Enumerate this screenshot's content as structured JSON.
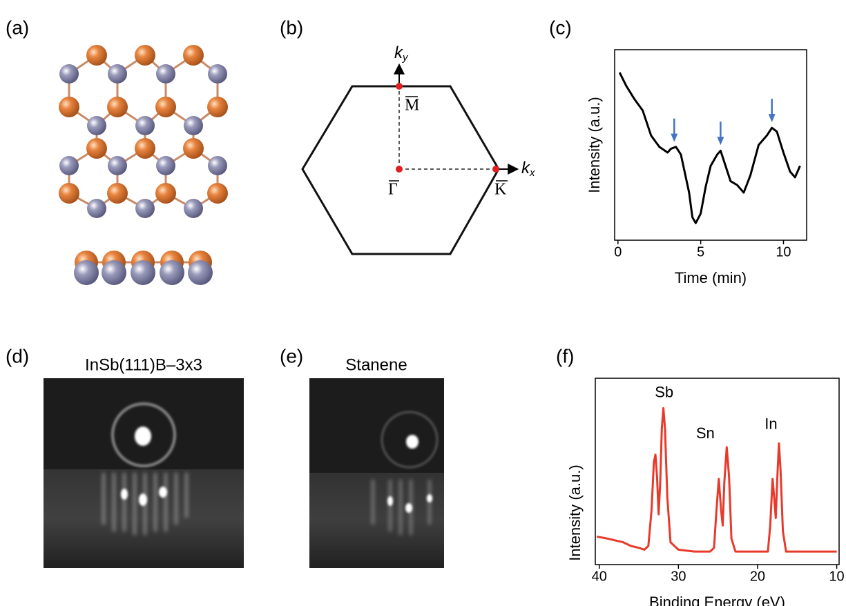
{
  "labels": [
    "(a)",
    "(b)",
    "(c)",
    "(d)",
    "(e)",
    "(f)"
  ],
  "brillouin_zone": {
    "ky": {
      "base": "k",
      "sub": "y"
    },
    "kx": {
      "base": "k",
      "sub": "x"
    },
    "points": [
      "M",
      "Γ",
      "K"
    ]
  },
  "images": [
    {
      "title": "InSb(111)B–3x3"
    },
    {
      "title": "Stanene"
    }
  ],
  "chart_data": [
    {
      "type": "line",
      "x_label": "Time (min)",
      "y_label": "Intensity (a.u.)",
      "x": [
        0.1,
        0.5,
        1.0,
        1.5,
        2.0,
        2.5,
        3.0,
        3.2,
        3.5,
        3.8,
        4.0,
        4.3,
        4.5,
        4.7,
        5.0,
        5.3,
        5.6,
        6.0,
        6.2,
        6.5,
        6.8,
        7.2,
        7.6,
        8.0,
        8.5,
        9.0,
        9.3,
        9.6,
        10.0,
        10.4,
        10.7,
        11.0
      ],
      "values": [
        0.88,
        0.81,
        0.74,
        0.68,
        0.55,
        0.49,
        0.46,
        0.48,
        0.49,
        0.45,
        0.37,
        0.25,
        0.12,
        0.09,
        0.14,
        0.28,
        0.39,
        0.45,
        0.47,
        0.39,
        0.31,
        0.29,
        0.25,
        0.34,
        0.5,
        0.55,
        0.59,
        0.57,
        0.46,
        0.36,
        0.33,
        0.39
      ],
      "color": "#000000",
      "xlim": [
        -0.2,
        11.4
      ],
      "ylim": [
        0,
        1
      ],
      "xticks": [
        0,
        5,
        10
      ],
      "arrows_x": [
        3.4,
        6.2,
        9.3
      ],
      "arrow_color": "#4472c4"
    },
    {
      "type": "line",
      "x_label": "Binding Energy (eV)",
      "y_label": "Intensity (a.u.)",
      "x": [
        40.3,
        39,
        38,
        37,
        36,
        35,
        34.3,
        33.8,
        33.4,
        33.1,
        32.9,
        32.7,
        32.5,
        32.3,
        32.1,
        31.9,
        31.7,
        31.4,
        31.0,
        30,
        28,
        26,
        25.5,
        25.2,
        24.9,
        24.6,
        24.4,
        24.2,
        23.9,
        23.6,
        23.3,
        22.8,
        20,
        18.7,
        18.4,
        18.1,
        17.9,
        17.7,
        17.5,
        17.3,
        17.1,
        16.8,
        16.4,
        15,
        12,
        10
      ],
      "values": [
        0.15,
        0.14,
        0.13,
        0.12,
        0.1,
        0.09,
        0.08,
        0.1,
        0.29,
        0.55,
        0.59,
        0.47,
        0.27,
        0.44,
        0.73,
        0.84,
        0.73,
        0.36,
        0.12,
        0.08,
        0.07,
        0.07,
        0.09,
        0.29,
        0.46,
        0.29,
        0.21,
        0.44,
        0.63,
        0.47,
        0.14,
        0.07,
        0.07,
        0.07,
        0.21,
        0.46,
        0.36,
        0.25,
        0.47,
        0.65,
        0.51,
        0.18,
        0.07,
        0.07,
        0.07,
        0.07
      ],
      "color": "#e8392b",
      "xlim": [
        40.5,
        9.7
      ],
      "ylim": [
        0,
        1
      ],
      "xticks": [
        40,
        30,
        20,
        10
      ],
      "annotations": [
        {
          "text": "Sb",
          "x": 31.8,
          "y": 0.92
        },
        {
          "text": "Sn",
          "x": 26.6,
          "y": 0.7
        },
        {
          "text": "In",
          "x": 18.3,
          "y": 0.75
        }
      ]
    }
  ]
}
